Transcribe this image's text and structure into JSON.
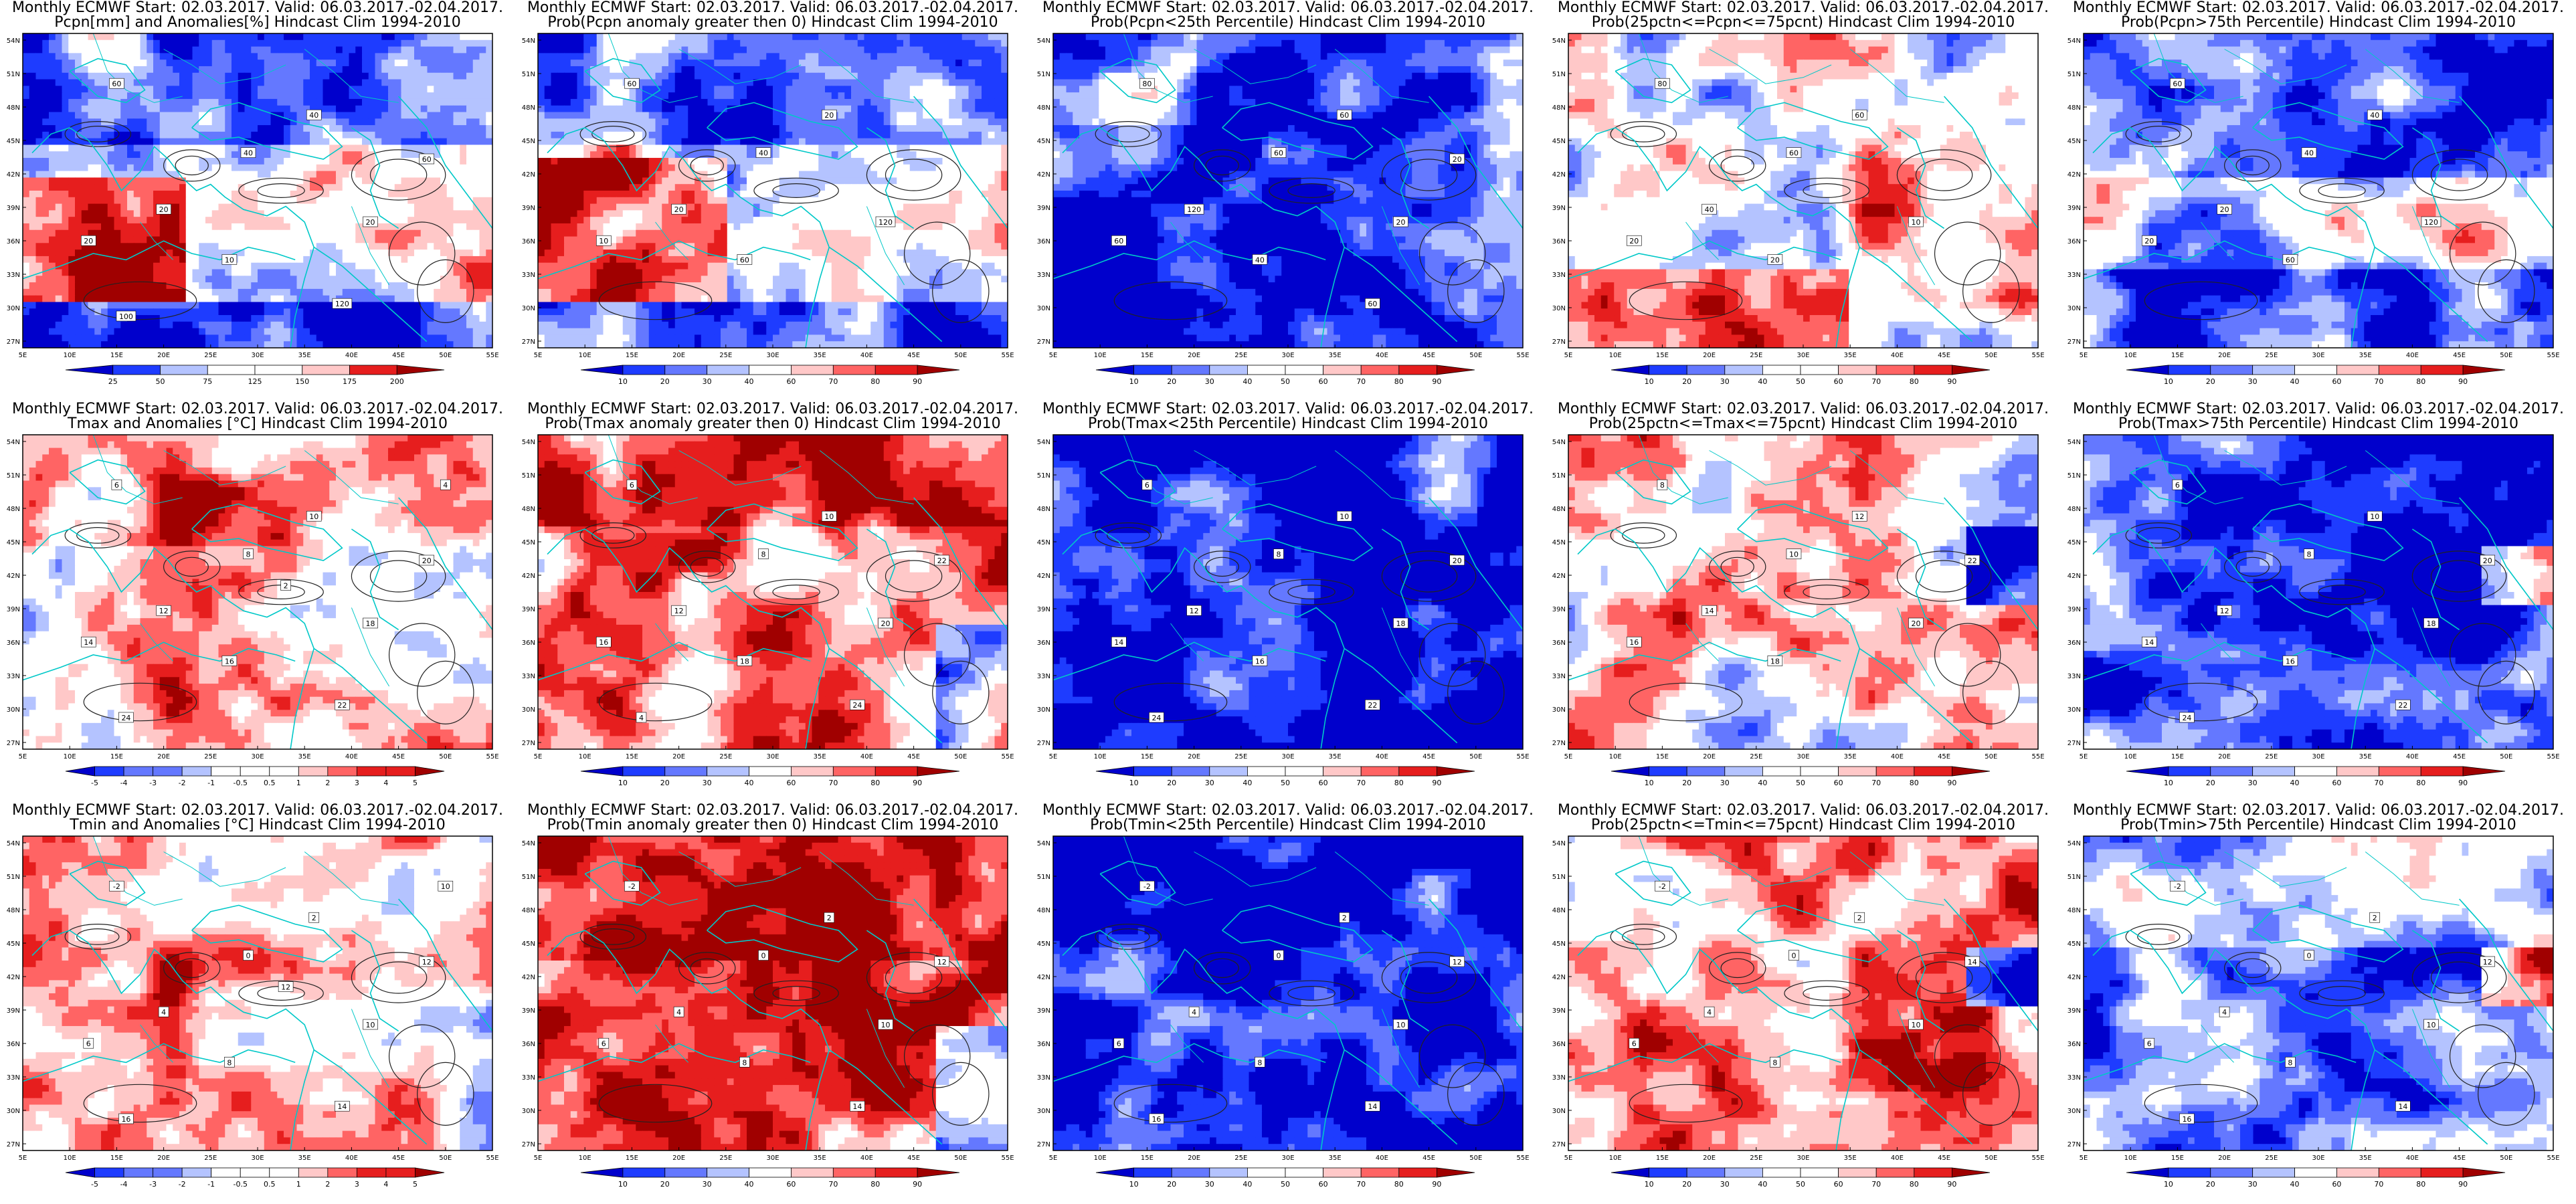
{
  "panels": [
    {
      "title1": "Monthly ECMWF Start: 02.03.2017. Valid: 06.03.2017.-02.04.2017.",
      "title2": "Pcpn[mm] and Anomalies[%] Hindcast Clim 1994-2010",
      "scale": "diverging",
      "colorbar_labels": [
        "25",
        "50",
        "75",
        "125",
        "150",
        "175",
        "200"
      ],
      "map_labels": [
        "60",
        "40",
        "40",
        "20",
        "20",
        "10",
        "20",
        "60",
        "120",
        "100"
      ],
      "field": "pcpn_anom"
    },
    {
      "title1": "Monthly ECMWF Start: 02.03.2017. Valid: 06.03.2017.-02.04.2017.",
      "title2": "Prob(Pcpn anomaly greater then 0) Hindcast Clim 1994-2010",
      "scale": "diverging",
      "colorbar_labels": [
        "10",
        "20",
        "30",
        "40",
        "60",
        "70",
        "80",
        "90"
      ],
      "map_labels": [
        "60",
        "40",
        "20",
        "20",
        "10",
        "60",
        "120"
      ],
      "field": "pcpn_prob"
    },
    {
      "title1": "Monthly ECMWF Start: 02.03.2017. Valid: 06.03.2017.-02.04.2017.",
      "title2": "Prob(Pcpn<25th Percentile) Hindcast Clim 1994-2010",
      "scale": "diverging",
      "colorbar_labels": [
        "10",
        "20",
        "30",
        "40",
        "50",
        "60",
        "70",
        "80",
        "90"
      ],
      "map_labels": [
        "80",
        "60",
        "60",
        "120",
        "60",
        "40",
        "20",
        "20",
        "60"
      ],
      "field": "pcpn_low"
    },
    {
      "title1": "Monthly ECMWF Start: 02.03.2017. Valid: 06.03.2017.-02.04.2017.",
      "title2": "Prob(25pctn<=Pcpn<=75pcnt) Hindcast Clim 1994-2010",
      "scale": "diverging",
      "colorbar_labels": [
        "10",
        "20",
        "30",
        "40",
        "50",
        "60",
        "70",
        "80",
        "90"
      ],
      "map_labels": [
        "80",
        "60",
        "60",
        "40",
        "20",
        "20",
        "10"
      ],
      "field": "pcpn_mid"
    },
    {
      "title1": "Monthly ECMWF Start: 02.03.2017. Valid: 06.03.2017.-02.04.2017.",
      "title2": "Prob(Pcpn>75th Percentile) Hindcast Clim 1994-2010",
      "scale": "diverging",
      "colorbar_labels": [
        "10",
        "20",
        "30",
        "40",
        "60",
        "70",
        "80",
        "90"
      ],
      "map_labels": [
        "60",
        "40",
        "40",
        "20",
        "20",
        "60",
        "120"
      ],
      "field": "pcpn_high"
    },
    {
      "title1": "Monthly ECMWF Start: 02.03.2017. Valid: 06.03.2017.-02.04.2017.",
      "title2": "Tmax and Anomalies [°C] Hindcast Clim 1994-2010",
      "scale": "diverging",
      "colorbar_labels": [
        "-5",
        "-4",
        "-3",
        "-2",
        "-1",
        "-0.5",
        "0.5",
        "1",
        "2",
        "3",
        "4",
        "5"
      ],
      "map_labels": [
        "6",
        "8",
        "10",
        "12",
        "14",
        "16",
        "18",
        "20",
        "22",
        "24",
        "4",
        "2"
      ],
      "field": "tmax_anom"
    },
    {
      "title1": "Monthly ECMWF Start: 02.03.2017. Valid: 06.03.2017.-02.04.2017.",
      "title2": "Prob(Tmax anomaly greater then 0) Hindcast Clim 1994-2010",
      "scale": "diverging",
      "colorbar_labels": [
        "10",
        "20",
        "30",
        "40",
        "60",
        "70",
        "80",
        "90"
      ],
      "map_labels": [
        "6",
        "8",
        "10",
        "12",
        "16",
        "18",
        "20",
        "22",
        "24",
        "4"
      ],
      "field": "tmax_prob"
    },
    {
      "title1": "Monthly ECMWF Start: 02.03.2017. Valid: 06.03.2017.-02.04.2017.",
      "title2": "Prob(Tmax<25th Percentile) Hindcast Clim 1994-2010",
      "scale": "diverging",
      "colorbar_labels": [
        "10",
        "20",
        "30",
        "40",
        "50",
        "60",
        "70",
        "80",
        "90"
      ],
      "map_labels": [
        "6",
        "8",
        "10",
        "12",
        "14",
        "16",
        "18",
        "20",
        "22",
        "24"
      ],
      "field": "tmax_low"
    },
    {
      "title1": "Monthly ECMWF Start: 02.03.2017. Valid: 06.03.2017.-02.04.2017.",
      "title2": "Prob(25pctn<=Tmax<=75pcnt) Hindcast Clim 1994-2010",
      "scale": "diverging",
      "colorbar_labels": [
        "10",
        "20",
        "30",
        "40",
        "50",
        "60",
        "70",
        "80",
        "90"
      ],
      "map_labels": [
        "8",
        "10",
        "12",
        "14",
        "16",
        "18",
        "20",
        "22"
      ],
      "field": "tmax_mid"
    },
    {
      "title1": "Monthly ECMWF Start: 02.03.2017. Valid: 06.03.2017.-02.04.2017.",
      "title2": "Prob(Tmax>75th Percentile) Hindcast Clim 1994-2010",
      "scale": "diverging",
      "colorbar_labels": [
        "10",
        "20",
        "30",
        "40",
        "60",
        "70",
        "80",
        "90"
      ],
      "map_labels": [
        "6",
        "8",
        "10",
        "12",
        "14",
        "16",
        "18",
        "20",
        "22",
        "24"
      ],
      "field": "tmax_high"
    },
    {
      "title1": "Monthly ECMWF Start: 02.03.2017. Valid: 06.03.2017.-02.04.2017.",
      "title2": "Tmin and Anomalies [°C] Hindcast Clim 1994-2010",
      "scale": "diverging",
      "colorbar_labels": [
        "-5",
        "-4",
        "-3",
        "-2",
        "-1",
        "-0.5",
        "0.5",
        "1",
        "2",
        "3",
        "4",
        "5"
      ],
      "map_labels": [
        "-2",
        "0",
        "2",
        "4",
        "6",
        "8",
        "10",
        "12",
        "14",
        "16",
        "10",
        "12"
      ],
      "field": "tmin_anom"
    },
    {
      "title1": "Monthly ECMWF Start: 02.03.2017. Valid: 06.03.2017.-02.04.2017.",
      "title2": "Prob(Tmin anomaly greater then 0) Hindcast Clim 1994-2010",
      "scale": "diverging",
      "colorbar_labels": [
        "10",
        "20",
        "30",
        "40",
        "60",
        "70",
        "80",
        "90"
      ],
      "map_labels": [
        "-2",
        "0",
        "2",
        "4",
        "6",
        "8",
        "10",
        "12",
        "14"
      ],
      "field": "tmin_prob"
    },
    {
      "title1": "Monthly ECMWF Start: 02.03.2017. Valid: 06.03.2017.-02.04.2017.",
      "title2": "Prob(Tmin<25th Percentile) Hindcast Clim 1994-2010",
      "scale": "diverging",
      "colorbar_labels": [
        "10",
        "20",
        "30",
        "40",
        "50",
        "60",
        "70",
        "80",
        "90"
      ],
      "map_labels": [
        "-2",
        "0",
        "2",
        "4",
        "6",
        "8",
        "10",
        "12",
        "14",
        "16"
      ],
      "field": "tmin_low"
    },
    {
      "title1": "Monthly ECMWF Start: 02.03.2017. Valid: 06.03.2017.-02.04.2017.",
      "title2": "Prob(25pctn<=Tmin<=75pcnt) Hindcast Clim 1994-2010",
      "scale": "diverging",
      "colorbar_labels": [
        "10",
        "20",
        "30",
        "40",
        "50",
        "60",
        "70",
        "80",
        "90"
      ],
      "map_labels": [
        "-2",
        "0",
        "2",
        "4",
        "6",
        "8",
        "10",
        "14"
      ],
      "field": "tmin_mid"
    },
    {
      "title1": "Monthly ECMWF Start: 02.03.2017. Valid: 06.03.2017.-02.04.2017.",
      "title2": "Prob(Tmin>75th Percentile) Hindcast Clim 1994-2010",
      "scale": "diverging",
      "colorbar_labels": [
        "10",
        "20",
        "30",
        "40",
        "60",
        "70",
        "80",
        "90"
      ],
      "map_labels": [
        "-2",
        "0",
        "2",
        "4",
        "6",
        "8",
        "10",
        "12",
        "14",
        "16"
      ],
      "field": "tmin_high"
    }
  ],
  "axes": {
    "lat_labels": [
      "54N",
      "51N",
      "48N",
      "45N",
      "42N",
      "39N",
      "36N",
      "33N",
      "30N",
      "27N"
    ],
    "lon_labels": [
      "5E",
      "10E",
      "15E",
      "20E",
      "25E",
      "30E",
      "35E",
      "40E",
      "45E",
      "50E",
      "55E"
    ]
  },
  "colors": {
    "deep_blue": "#0000cc",
    "blue": "#1e3cff",
    "mid_blue": "#6478ff",
    "light_blue": "#b4c3ff",
    "white": "#ffffff",
    "light_red": "#ffc8c8",
    "mid_red": "#ff6464",
    "red": "#e61e1e",
    "dark_red": "#a00000",
    "coast": "#00c8c8",
    "contour": "#222222"
  }
}
